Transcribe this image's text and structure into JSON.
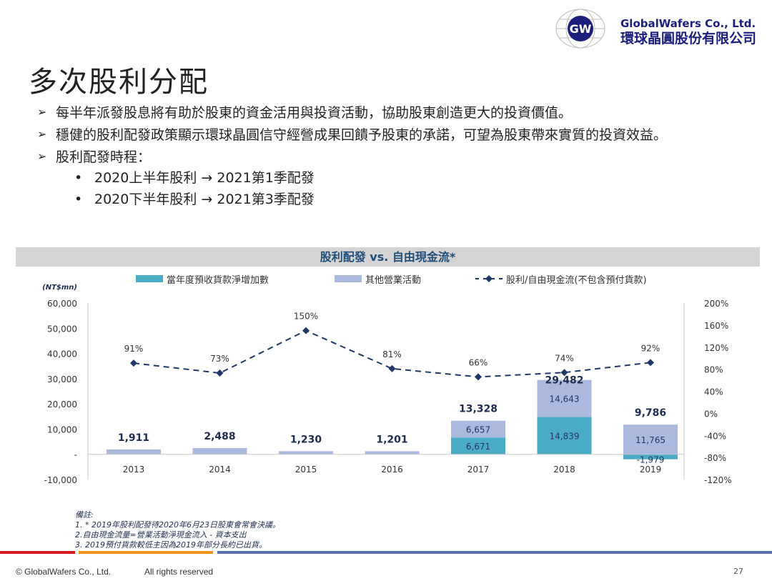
{
  "logo": {
    "name_en": "GlobalWafers Co., Ltd.",
    "name_zh": "環球晶圓股份有限公司",
    "mark": "GW"
  },
  "title": "多次股利分配",
  "bullets": [
    "每半年派發股息將有助於股東的資金活用與投資活動，協助股東創造更大的投資價值。",
    "穩健的股利配發政策顯示環球晶圓信守經營成果回饋予股東的承諾，可望為股東帶來實質的投資效益。",
    "股利配發時程："
  ],
  "sub_bullets": [
    "2020上半年股利 → 2021第1季配發",
    "2020下半年股利 → 2021第3季配發"
  ],
  "chart_data": {
    "type": "bar",
    "title": "股利配發 vs. 自由現金流*",
    "ylabel": "(NT$mn)",
    "categories": [
      "2013",
      "2014",
      "2015",
      "2016",
      "2017",
      "2018",
      "2019"
    ],
    "series": [
      {
        "name": "當年度預收貨款淨增加數",
        "type": "bar",
        "color": "#4bacc6",
        "values": [
          0,
          0,
          0,
          0,
          6671,
          14839,
          -1979
        ],
        "labels": [
          "",
          "",
          "",
          "",
          "6,671",
          "14,839",
          "-1,979"
        ]
      },
      {
        "name": "其他營業活動",
        "type": "bar",
        "color": "#aab9dd",
        "values": [
          1911,
          2488,
          1230,
          1201,
          6657,
          14643,
          11765
        ],
        "labels": [
          "",
          "",
          "",
          "",
          "6,657",
          "14,643",
          "11,765"
        ]
      },
      {
        "name": "股利/自由現金流(不包含預付貨款)",
        "type": "line",
        "axis": "right",
        "color": "#1f3864",
        "values": [
          91,
          73,
          150,
          81,
          66,
          74,
          92
        ],
        "labels": [
          "91%",
          "73%",
          "150%",
          "81%",
          "66%",
          "74%",
          "92%"
        ]
      }
    ],
    "totals": [
      "1,911",
      "2,488",
      "1,230",
      "1,201",
      "13,328",
      "29,482",
      "9,786"
    ],
    "ylim": [
      -10000,
      60000
    ],
    "yticks": [
      "60,000",
      "50,000",
      "40,000",
      "30,000",
      "20,000",
      "10,000",
      "-",
      "-10,000"
    ],
    "y2lim": [
      -120,
      200
    ],
    "y2ticks": [
      "200%",
      "160%",
      "120%",
      "80%",
      "40%",
      "0%",
      "-40%",
      "-80%",
      "-120%"
    ],
    "legend": "top"
  },
  "notes": [
    "備註:",
    "1. * 2019年股利配發待2020年6月23日股東會常會決議。",
    "2.自由現金流量=營業活動淨現金流入 - 資本支出",
    "3. 2019預付貨款較低主因為2019年部分長約已出貨。"
  ],
  "footer": {
    "copyright": "© GlobalWafers Co., Ltd.",
    "rights": "All rights reserved",
    "page": "27"
  }
}
